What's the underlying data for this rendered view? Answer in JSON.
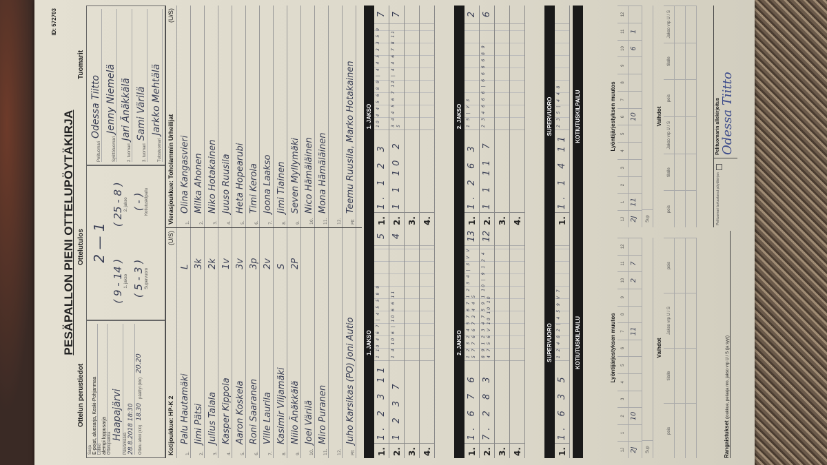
{
  "form": {
    "title": "PESÄPALLON PIENI OTTELUPÖYTÄKIRJA",
    "id": "ID: 572703",
    "basic_heading": "Ottelun perustiedot",
    "result_heading": "Ottelutulos",
    "referees_heading": "Tuomarit"
  },
  "basic": {
    "sarja_label": "Sarja",
    "sarja": "E-pojat, aluesarja, Keski-Pohjanmaa",
    "lohko_label": "Lohko",
    "lohko": "alempi loppusarja",
    "paikka_label": "Ottelupaikka",
    "paikka": "Haapajärvi",
    "date_label": "Päivämäärä",
    "date": "28.8.2018 18:30",
    "start_label": "Ottelu alkoi (klo)",
    "start": "18.30",
    "end_label": "päättyi (klo)",
    "end": "20.20"
  },
  "result": {
    "score": "2 — 1",
    "p1": "( 9 - 14 )",
    "p1_label": "1. jakso",
    "p2": "( 25 - 8 )",
    "p2_label": "2. jakso",
    "super": "( 5 - 3 )",
    "super_label": "Supervuoro",
    "kot": "(  -  )",
    "kot_label": "Kotiutuskilpailu"
  },
  "referees": [
    {
      "role": "Pelituomari",
      "name": "Odessa Tiitto"
    },
    {
      "role": "Syöttötuomari",
      "name": "Jenny Niemelä"
    },
    {
      "role": "2. tuomari",
      "name": "Jari Änäkkälä"
    },
    {
      "role": "3. tuomari",
      "name": "Sami Värilä"
    },
    {
      "role": "Tulostuomari",
      "name": "Jarkko Mehtälä"
    }
  ],
  "home": {
    "label": "Kotijoukkue: HP-K 2",
    "us": "(U/S)",
    "players": [
      {
        "n": "1.",
        "name": "Palu Hautamäki",
        "pos": "L"
      },
      {
        "n": "2.",
        "name": "Jimi Pätsi",
        "pos": "3k"
      },
      {
        "n": "3.",
        "name": "Julius Talala",
        "pos": "2k"
      },
      {
        "n": "4.",
        "name": "Kasper Kippola",
        "pos": "1v"
      },
      {
        "n": "5.",
        "name": "Aaron Koskela",
        "pos": "3v"
      },
      {
        "n": "6.",
        "name": "Roni Saaranen",
        "pos": "3p"
      },
      {
        "n": "7.",
        "name": "Ville Laurila",
        "pos": "2v"
      },
      {
        "n": "8.",
        "name": "Kasimir Viljamäki",
        "pos": "S"
      },
      {
        "n": "9.",
        "name": "Niilo Änäkkälä",
        "pos": "2P"
      },
      {
        "n": "10.",
        "name": "Joel Värilä",
        "pos": ""
      },
      {
        "n": "11.",
        "name": "Miro Puranen",
        "pos": ""
      },
      {
        "n": "12.",
        "name": "",
        "pos": ""
      }
    ],
    "plt_label": "Plt",
    "plt": "Juho Karsikas (PO) Joni Autio"
  },
  "away": {
    "label": "Vierasjoukkue: Toholammin Urheilijat",
    "us": "(U/S)",
    "players": [
      {
        "n": "1.",
        "name": "Olina Kangasvieri",
        "pos": ""
      },
      {
        "n": "2.",
        "name": "Milka Ahonen",
        "pos": ""
      },
      {
        "n": "3.",
        "name": "Niko Hotakainen",
        "pos": ""
      },
      {
        "n": "4.",
        "name": "Juuso Ruusila",
        "pos": ""
      },
      {
        "n": "5.",
        "name": "Heta Hopearubi",
        "pos": ""
      },
      {
        "n": "6.",
        "name": "Timi Kerola",
        "pos": ""
      },
      {
        "n": "7.",
        "name": "Joona Laakso",
        "pos": ""
      },
      {
        "n": "8.",
        "name": "Jimi Tiainen",
        "pos": ""
      },
      {
        "n": "9.",
        "name": "Seven Myllymäki",
        "pos": ""
      },
      {
        "n": "10.",
        "name": "Nico Hämäläinen",
        "pos": ""
      },
      {
        "n": "11.",
        "name": "Mona Hämäläinen",
        "pos": ""
      },
      {
        "n": "12.",
        "name": "",
        "pos": ""
      }
    ],
    "plt_label": "Plt",
    "plt": "Teemu Ruusila, Marko Hotakainen"
  },
  "scoring": {
    "p1": "1. JAKSO",
    "p2": "2. JAKSO",
    "super": "SUPERVUORO",
    "kot": "KOTIUTUSKILPAILU",
    "home": {
      "p1": [
        {
          "n": "1.",
          "cells": "1. 2 3 11",
          "detail": "1 10 4 6 7 | 4 5 5 9 9",
          "total": "5"
        },
        {
          "n": "2.",
          "cells": "1 2 3 7",
          "detail": "1 4 10 6 | 10 6 6 11",
          "total": "4"
        },
        {
          "n": "3.",
          "cells": "",
          "detail": "",
          "total": ""
        },
        {
          "n": "4.",
          "cells": "",
          "detail": "",
          "total": ""
        }
      ],
      "p2": [
        {
          "n": "1.",
          "cells": "1. 6 7 6",
          "detail": "1 2 3 2 4 5 7 6 7 1 2 3 4 | 3 V V 5 7 7 6 6 7 3 4 4 5",
          "total": "13"
        },
        {
          "n": "2.",
          "cells": "7. 2 8 3",
          "detail": "8 9 1 2 3 4 7 5 9 1 10 | 9 1 2 4 4 7 5 6 V 10 10 10",
          "total": "12"
        },
        {
          "n": "3.",
          "cells": "",
          "detail": "",
          "total": ""
        },
        {
          "n": "4.",
          "cells": "",
          "detail": "",
          "total": ""
        }
      ],
      "super": [
        {
          "n": "1.",
          "cells": "1. 6 3 5",
          "detail": "1 2 4 8 2 | 4 5 9 V 7",
          "total": ""
        }
      ]
    },
    "away": {
      "p1": [
        {
          "n": "1.",
          "cells": "1. 1 2 3",
          "detail": "10 4 4 5 6 8 9 | 4 4 5 3 3 5 9",
          "total": "7"
        },
        {
          "n": "2.",
          "cells": "1 1 10 2",
          "detail": "3 4 4 5 6 7 11 | 4 4 6 7 8 11 5",
          "total": "7"
        },
        {
          "n": "3.",
          "cells": "",
          "detail": "",
          "total": ""
        },
        {
          "n": "4.",
          "cells": "",
          "detail": "",
          "total": ""
        }
      ],
      "p2": [
        {
          "n": "1.",
          "cells": "1. 2 6 3",
          "detail": "1 5 | V 3",
          "total": "2"
        },
        {
          "n": "2.",
          "cells": "1 1 11 7",
          "detail": "2 3 4 6 6 6 | 6 6 6 6 8 9",
          "total": "6"
        },
        {
          "n": "3.",
          "cells": "",
          "detail": "",
          "total": ""
        },
        {
          "n": "4.",
          "cells": "",
          "detail": "",
          "total": ""
        }
      ],
      "super": [
        {
          "n": "1.",
          "cells": "1. 1 4 11",
          "detail": "2 3 5 | 4 4 8",
          "total": ""
        }
      ]
    }
  },
  "changes": {
    "heading": "Lyöntijärjestyksen muutos",
    "cols": [
      "1J",
      "1",
      "2",
      "3",
      "4",
      "5",
      "6",
      "7",
      "8",
      "9",
      "10",
      "11",
      "12"
    ],
    "home_2j": [
      "2J",
      "",
      "10",
      "",
      "",
      "",
      "",
      "11",
      "",
      "",
      "2",
      "7",
      ""
    ],
    "away_2j": [
      "2J",
      "11",
      "",
      "",
      "",
      "",
      "10",
      "",
      "",
      "",
      "6",
      "1",
      ""
    ],
    "sup": "Sup"
  },
  "subs": {
    "heading": "Vaihdot",
    "cols": [
      "pois",
      "tilalle",
      "Jakso vrp U / S",
      "pois",
      "tilalle",
      "Jakso vrp U / S"
    ]
  },
  "penalties": {
    "label": "Rangaistukset",
    "hint": "(joukkue, pelaaja nro, jakso vrp U / S (ja syy))"
  },
  "signature": {
    "check_text": "Pelituomari tarkastanut pöytäkirjan",
    "label": "Pelituomarin allekirjoitus",
    "name": "Odessa Tiitto"
  }
}
